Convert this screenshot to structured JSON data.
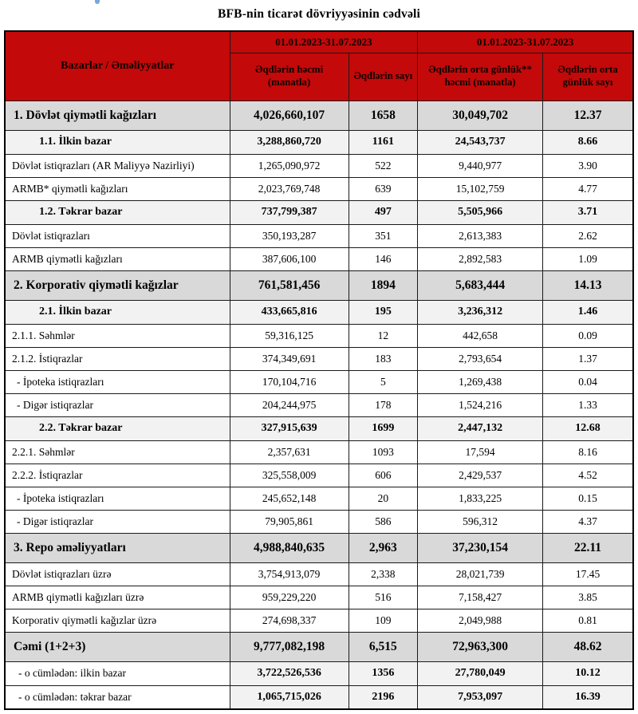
{
  "page": {
    "title": "BFB-nin ticarət dövriyyəsinin cədvəli"
  },
  "colors": {
    "header_bg": "#c30909",
    "header_text": "#0d0000",
    "section_row_bg": "#d9d9d9",
    "subsection_row_bg": "#f2f2f2",
    "total_values_bg": "#f2f2f2",
    "border": "#000000",
    "logo_artifact": "#5b9bd5"
  },
  "table": {
    "header": {
      "col_markets": "Bazarlar / Əməliyyatlar",
      "period_1": "01.01.2023-31.07.2023",
      "period_2": "01.01.2023-31.07.2023",
      "col_volume": "Əqdlərin həcmi (manatla)",
      "col_count": "Əqdlərin sayı",
      "col_avg_daily_volume": "Əqdlərin orta günlük** həcmi (manatla)",
      "col_avg_daily_count": "Əqdlərin orta günlük sayı"
    },
    "rows": [
      {
        "label": "1. Dövlət qiymətli kağızları",
        "values": [
          "4,026,660,107",
          "1658",
          "30,049,702",
          "12.37"
        ],
        "style": "section"
      },
      {
        "label": "1.1. İlkin bazar",
        "values": [
          "3,288,860,720",
          "1161",
          "24,543,737",
          "8.66"
        ],
        "style": "subsection"
      },
      {
        "label": "Dövlət istiqrazları (AR Maliyyə Nazirliyi)",
        "values": [
          "1,265,090,972",
          "522",
          "9,440,977",
          "3.90"
        ],
        "style": "normal"
      },
      {
        "label": "ARMB* qiymətli kağızları",
        "values": [
          "2,023,769,748",
          "639",
          "15,102,759",
          "4.77"
        ],
        "style": "normal"
      },
      {
        "label": "1.2. Təkrar bazar",
        "values": [
          "737,799,387",
          "497",
          "5,505,966",
          "3.71"
        ],
        "style": "subsection"
      },
      {
        "label": "Dövlət istiqrazları",
        "values": [
          "350,193,287",
          "351",
          "2,613,383",
          "2.62"
        ],
        "style": "normal"
      },
      {
        "label": "ARMB qiymətli kağızları",
        "values": [
          "387,606,100",
          "146",
          "2,892,583",
          "1.09"
        ],
        "style": "normal"
      },
      {
        "label": "2. Korporativ qiymətli kağızlar",
        "values": [
          "761,581,456",
          "1894",
          "5,683,444",
          "14.13"
        ],
        "style": "section"
      },
      {
        "label": "2.1. İlkin bazar",
        "values": [
          "433,665,816",
          "195",
          "3,236,312",
          "1.46"
        ],
        "style": "subsection"
      },
      {
        "label": "2.1.1. Səhmlər",
        "values": [
          "59,316,125",
          "12",
          "442,658",
          "0.09"
        ],
        "style": "normal"
      },
      {
        "label": "2.1.2. İstiqrazlar",
        "values": [
          "374,349,691",
          "183",
          "2,793,654",
          "1.37"
        ],
        "style": "normal"
      },
      {
        "label": "- İpoteka istiqrazları",
        "values": [
          "170,104,716",
          "5",
          "1,269,438",
          "0.04"
        ],
        "style": "indent"
      },
      {
        "label": "- Digər istiqrazlar",
        "values": [
          "204,244,975",
          "178",
          "1,524,216",
          "1.33"
        ],
        "style": "indent"
      },
      {
        "label": "2.2. Təkrar bazar",
        "values": [
          "327,915,639",
          "1699",
          "2,447,132",
          "12.68"
        ],
        "style": "subsection"
      },
      {
        "label": "2.2.1. Səhmlər",
        "values": [
          "2,357,631",
          "1093",
          "17,594",
          "8.16"
        ],
        "style": "normal"
      },
      {
        "label": "2.2.2. İstiqrazlar",
        "values": [
          "325,558,009",
          "606",
          "2,429,537",
          "4.52"
        ],
        "style": "normal"
      },
      {
        "label": "- İpoteka istiqrazları",
        "values": [
          "245,652,148",
          "20",
          "1,833,225",
          "0.15"
        ],
        "style": "indent"
      },
      {
        "label": "- Digər istiqrazlar",
        "values": [
          "79,905,861",
          "586",
          "596,312",
          "4.37"
        ],
        "style": "indent"
      },
      {
        "label": "3. Repo əməliyyatları",
        "values": [
          "4,988,840,635",
          "2,963",
          "37,230,154",
          "22.11"
        ],
        "style": "section"
      },
      {
        "label": "Dövlət istiqrazları üzrə",
        "values": [
          "3,754,913,079",
          "2,338",
          "28,021,739",
          "17.45"
        ],
        "style": "normal"
      },
      {
        "label": "ARMB qiymətli kağızları üzrə",
        "values": [
          "959,229,220",
          "516",
          "7,158,427",
          "3.85"
        ],
        "style": "normal"
      },
      {
        "label": "Korporativ qiymətli kağızlar üzrə",
        "values": [
          "274,698,337",
          "109",
          "2,049,988",
          "0.81"
        ],
        "style": "normal"
      },
      {
        "label": "Cəmi (1+2+3)",
        "values": [
          "9,777,082,198",
          "6,515",
          "72,963,300",
          "48.62"
        ],
        "style": "section"
      },
      {
        "label": "- o cümlədən: ilkin bazar",
        "values": [
          "3,722,526,536",
          "1356",
          "27,780,049",
          "10.12"
        ],
        "style": "totalsub"
      },
      {
        "label": "- o cümlədən: təkrar bazar",
        "values": [
          "1,065,715,026",
          "2196",
          "7,953,097",
          "16.39"
        ],
        "style": "totalsub"
      }
    ]
  }
}
